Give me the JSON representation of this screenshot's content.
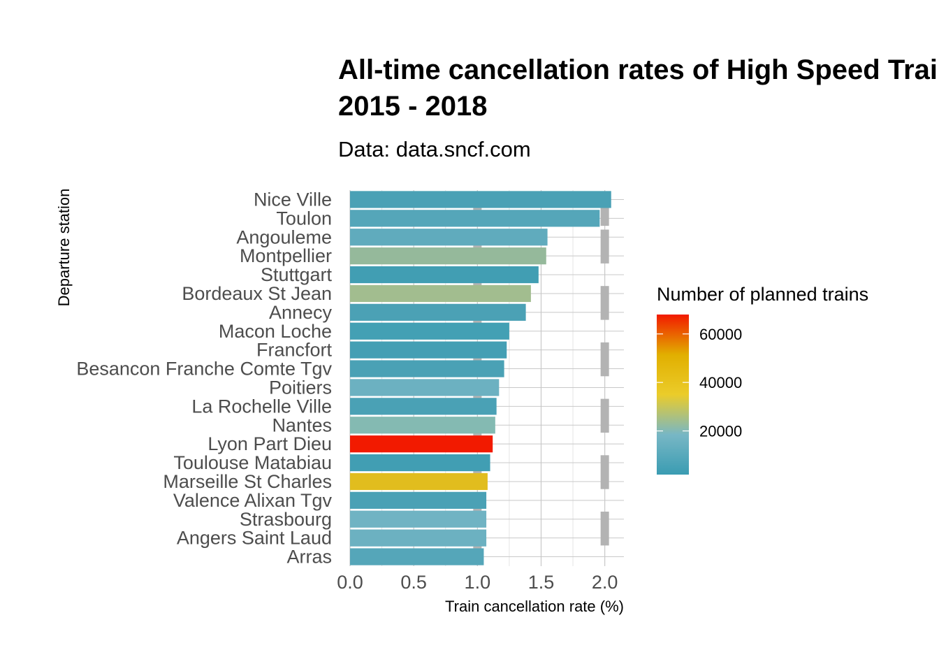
{
  "chart_data": {
    "type": "bar",
    "orientation": "horizontal",
    "title_lines": [
      "All-time cancellation rates of High Speed Trains",
      "2015 - 2018"
    ],
    "subtitle": "Data: data.sncf.com",
    "xlabel": "Train cancellation rate (%)",
    "ylabel": "Departure station",
    "xlim": [
      0,
      2.15
    ],
    "x_ticks": [
      0.0,
      0.5,
      1.0,
      1.5,
      2.0
    ],
    "x_tick_labels": [
      "0.0",
      "0.5",
      "1.0",
      "1.5",
      "2.0"
    ],
    "grid": true,
    "legend": {
      "title": "Number of planned trains",
      "placement": "right",
      "type": "colorbar",
      "range": [
        2000,
        68000
      ],
      "ticks": [
        20000,
        40000,
        60000
      ],
      "tick_labels": [
        "20000",
        "40000",
        "60000"
      ],
      "colors": [
        "#3a9cb2",
        "#78b7c5",
        "#ebcc2a",
        "#e1af00",
        "#f21a00"
      ]
    },
    "categories": [
      "Nice Ville",
      "Toulon",
      "Angouleme",
      "Montpellier",
      "Stuttgart",
      "Bordeaux St Jean",
      "Annecy",
      "Macon Loche",
      "Francfort",
      "Besancon Franche Comte Tgv",
      "Poitiers",
      "La Rochelle Ville",
      "Nantes",
      "Lyon Part Dieu",
      "Toulouse Matabiau",
      "Marseille St Charles",
      "Valence Alixan Tgv",
      "Strasbourg",
      "Angers Saint Laud",
      "Arras"
    ],
    "values": [
      2.05,
      1.96,
      1.55,
      1.54,
      1.48,
      1.42,
      1.38,
      1.25,
      1.23,
      1.21,
      1.17,
      1.15,
      1.14,
      1.12,
      1.1,
      1.08,
      1.07,
      1.07,
      1.07,
      1.05
    ],
    "bar_colors": [
      "#4aa1b5",
      "#55a6b9",
      "#60abbd",
      "#95b99b",
      "#419eb3",
      "#a2bd8f",
      "#4ba1b5",
      "#43a0b4",
      "#449fb4",
      "#4aa1b5",
      "#6cb1c1",
      "#4aa1b5",
      "#84bab2",
      "#f21a00",
      "#419eb3",
      "#e1bd1e",
      "#4aa1b5",
      "#70b3c3",
      "#6cb1c1",
      "#55a6b9"
    ],
    "background_markers": [
      {
        "x": 1.0,
        "category_span": [
          "Nice Ville",
          "Toulon"
        ]
      },
      {
        "x": 1.0,
        "category_span": [
          "Angouleme",
          "Montpellier"
        ]
      },
      {
        "x": 1.0,
        "category_span": [
          "Stuttgart",
          "Bordeaux St Jean"
        ]
      },
      {
        "x": 1.0,
        "category_span": [
          "Annecy",
          "Macon Loche"
        ]
      },
      {
        "x": 1.0,
        "category_span": [
          "Francfort",
          "Besancon Franche Comte Tgv"
        ]
      },
      {
        "x": 1.0,
        "category_span": [
          "Poitiers",
          "La Rochelle Ville"
        ]
      },
      {
        "x": 1.0,
        "category_span": [
          "Nantes",
          "Lyon Part Dieu"
        ]
      },
      {
        "x": 1.0,
        "category_span": [
          "Toulouse Matabiau",
          "Marseille St Charles"
        ]
      },
      {
        "x": 1.0,
        "category_span": [
          "Valence Alixan Tgv",
          "Strasbourg"
        ]
      },
      {
        "x": 1.0,
        "category_span": [
          "Angers Saint Laud",
          "Arras"
        ]
      },
      {
        "x": 2.0,
        "category_span": [
          "Nice Ville",
          "Toulon"
        ]
      },
      {
        "x": 2.0,
        "category_span": [
          "Angouleme",
          "Montpellier"
        ]
      },
      {
        "x": 2.0,
        "category_span": [
          "Bordeaux St Jean",
          "Annecy"
        ]
      },
      {
        "x": 2.0,
        "category_span": [
          "Francfort",
          "Besancon Franche Comte Tgv"
        ]
      },
      {
        "x": 2.0,
        "category_span": [
          "La Rochelle Ville",
          "Nantes"
        ]
      },
      {
        "x": 2.0,
        "category_span": [
          "Toulouse Matabiau",
          "Marseille St Charles"
        ]
      },
      {
        "x": 2.0,
        "category_span": [
          "Strasbourg",
          "Angers Saint Laud"
        ]
      }
    ]
  },
  "colors": {
    "grid_major": "#c8c8c8",
    "grid_minor": "#e4e4e4",
    "marker": "#b3b3b3"
  }
}
